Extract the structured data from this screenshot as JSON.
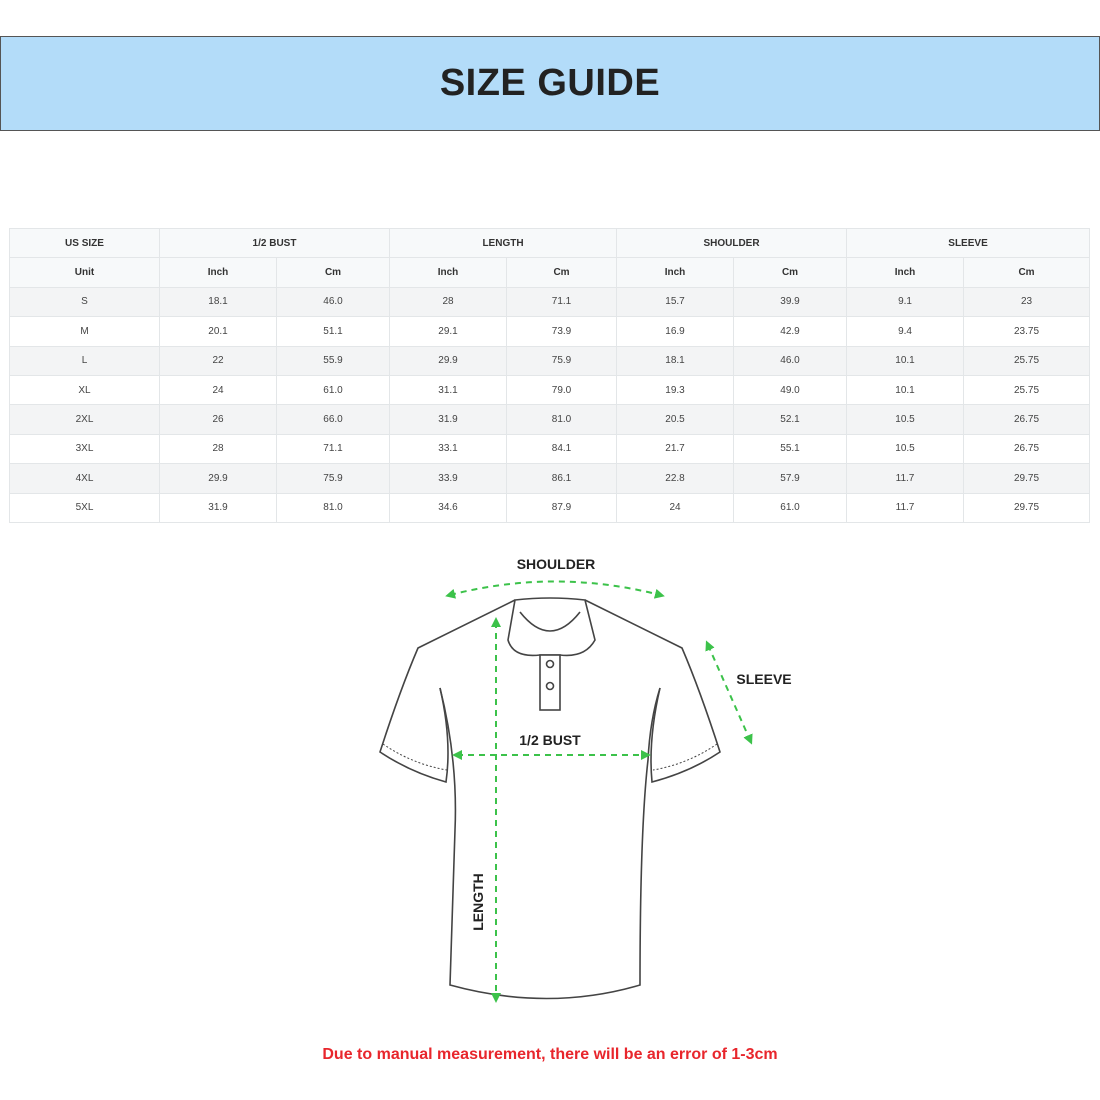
{
  "header": {
    "title": "SIZE GUIDE"
  },
  "table": {
    "groups": [
      "US SIZE",
      "1/2 BUST",
      "LENGTH",
      "SHOULDER",
      "SLEEVE"
    ],
    "units": [
      "Unit",
      "Inch",
      "Cm",
      "Inch",
      "Cm",
      "Inch",
      "Cm",
      "Inch",
      "Cm"
    ],
    "rows": [
      [
        "S",
        "18.1",
        "46.0",
        "28",
        "71.1",
        "15.7",
        "39.9",
        "9.1",
        "23"
      ],
      [
        "M",
        "20.1",
        "51.1",
        "29.1",
        "73.9",
        "16.9",
        "42.9",
        "9.4",
        "23.75"
      ],
      [
        "L",
        "22",
        "55.9",
        "29.9",
        "75.9",
        "18.1",
        "46.0",
        "10.1",
        "25.75"
      ],
      [
        "XL",
        "24",
        "61.0",
        "31.1",
        "79.0",
        "19.3",
        "49.0",
        "10.1",
        "25.75"
      ],
      [
        "2XL",
        "26",
        "66.0",
        "31.9",
        "81.0",
        "20.5",
        "52.1",
        "10.5",
        "26.75"
      ],
      [
        "3XL",
        "28",
        "71.1",
        "33.1",
        "84.1",
        "21.7",
        "55.1",
        "10.5",
        "26.75"
      ],
      [
        "4XL",
        "29.9",
        "75.9",
        "33.9",
        "86.1",
        "22.8",
        "57.9",
        "11.7",
        "29.75"
      ],
      [
        "5XL",
        "31.9",
        "81.0",
        "34.6",
        "87.9",
        "24",
        "61.0",
        "11.7",
        "29.75"
      ]
    ]
  },
  "diagram": {
    "shoulder": "SHOULDER",
    "sleeve": "SLEEVE",
    "bust": "1/2 BUST",
    "length": "LENGTH"
  },
  "note": "Due to manual measurement, there will be an error of 1-3cm"
}
